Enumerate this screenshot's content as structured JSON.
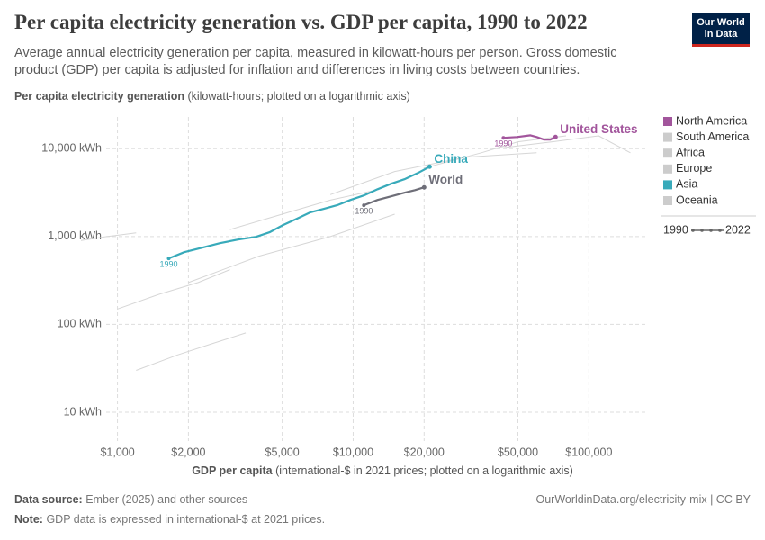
{
  "chart_data": {
    "type": "line",
    "title": "Per capita electricity generation vs. GDP per capita, 1990 to 2022",
    "subtitle": "Average annual electricity generation per capita, measured in kilowatt-hours per person. Gross domestic product (GDP) per capita is adjusted for inflation and differences in living costs between countries.",
    "y_label": {
      "main": "Per capita electricity generation",
      "detail": "(kilowatt-hours; plotted on a logarithmic axis)"
    },
    "x_label": {
      "main": "GDP per capita",
      "detail": "(international-$ in 2021 prices; plotted on a logarithmic axis)"
    },
    "logo": [
      "Our World",
      "in Data"
    ],
    "source_label": "Data source:",
    "source": "Ember (2025) and other sources",
    "url": "OurWorldinData.org/electricity-mix | CC BY",
    "note_label": "Note:",
    "note": "GDP data is expressed in international-$ at 2021 prices.",
    "xscale": "log",
    "yscale": "log",
    "grid": true,
    "xlim": [
      700,
      175000
    ],
    "ylim": [
      4.7,
      23000
    ],
    "xticks": [
      {
        "value": 1000,
        "label": "$1,000"
      },
      {
        "value": 2000,
        "label": "$2,000"
      },
      {
        "value": 5000,
        "label": "$5,000"
      },
      {
        "value": 10000,
        "label": "$10,000"
      },
      {
        "value": 20000,
        "label": "$20,000"
      },
      {
        "value": 50000,
        "label": "$50,000"
      },
      {
        "value": 100000,
        "label": "$100,000"
      }
    ],
    "yticks": [
      {
        "value": 10,
        "label": "10 kWh"
      },
      {
        "value": 100,
        "label": "100 kWh"
      },
      {
        "value": 1000,
        "label": "1,000 kWh"
      },
      {
        "value": 10000,
        "label": "10,000 kWh"
      }
    ],
    "legend_position": "right",
    "legend": [
      {
        "name": "North America",
        "color": "#a2559c"
      },
      {
        "name": "South America",
        "color": "#cccccc"
      },
      {
        "name": "Africa",
        "color": "#cccccc"
      },
      {
        "name": "Europe",
        "color": "#cccccc"
      },
      {
        "name": "Asia",
        "color": "#38aaba"
      },
      {
        "name": "Oceania",
        "color": "#cccccc"
      }
    ],
    "time_legend": [
      "1990",
      "2022"
    ],
    "series": [
      {
        "color": "#d6d6d6",
        "x": [
          1000,
          1500,
          2200,
          3000
        ],
        "values": [
          150,
          220,
          300,
          420
        ]
      },
      {
        "color": "#d6d6d6",
        "x": [
          3000,
          5000,
          8000,
          12000
        ],
        "values": [
          1200,
          1800,
          2600,
          3300
        ]
      },
      {
        "color": "#d6d6d6",
        "x": [
          8000,
          15000,
          30000,
          60000
        ],
        "values": [
          3000,
          5500,
          8000,
          9000
        ]
      },
      {
        "color": "#d6d6d6",
        "x": [
          20000,
          35000,
          50000,
          80000
        ],
        "values": [
          6000,
          9000,
          12000,
          14000
        ]
      },
      {
        "color": "#d6d6d6",
        "x": [
          1200,
          1800,
          2500,
          3500
        ],
        "values": [
          30,
          45,
          60,
          80
        ]
      },
      {
        "color": "#d6d6d6",
        "x": [
          2000,
          4000,
          8000,
          15000
        ],
        "values": [
          300,
          600,
          1000,
          1800
        ]
      },
      {
        "color": "#d6d6d6",
        "x": [
          40000,
          70000,
          110000,
          150000
        ],
        "values": [
          10000,
          12000,
          14000,
          9000
        ]
      },
      {
        "color": "#d6d6d6",
        "x": [
          700,
          900,
          1200
        ],
        "values": [
          900,
          1000,
          1100
        ]
      },
      {
        "name": "China",
        "color": "#38aaba",
        "start_label": "1990",
        "x": [
          1650,
          1920,
          2290,
          2720,
          3250,
          3870,
          4420,
          5040,
          5750,
          6560,
          7480,
          8540,
          9740,
          11100,
          12700,
          14500,
          16500,
          18800,
          21100
        ],
        "values": [
          564,
          665,
          748,
          842,
          925,
          993,
          1120,
          1350,
          1590,
          1880,
          2060,
          2270,
          2610,
          2940,
          3460,
          3990,
          4490,
          5290,
          6240
        ]
      },
      {
        "name": "World",
        "color": "#6e6e78",
        "start_label": "1990",
        "x": [
          11100,
          12700,
          14500,
          16500,
          18300,
          20000
        ],
        "values": [
          2270,
          2610,
          2870,
          3150,
          3380,
          3630
        ]
      },
      {
        "name": "United States",
        "color": "#a2559c",
        "start_label": "1990",
        "x": [
          43400,
          49500,
          56500,
          60100,
          64500,
          68500,
          72200
        ],
        "values": [
          13300,
          13600,
          14200,
          13600,
          12700,
          12700,
          13600
        ]
      }
    ]
  }
}
